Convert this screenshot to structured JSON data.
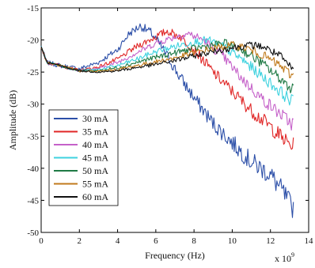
{
  "chart_data": {
    "type": "line",
    "xlabel": "Frequency (Hz)",
    "ylabel": "Amplitude (dB)",
    "x_multiplier_label": "x 10",
    "x_multiplier_exponent": "9",
    "xlim": [
      0,
      14
    ],
    "ylim": [
      -50,
      -15
    ],
    "xticks": [
      "0",
      "2",
      "4",
      "6",
      "8",
      "10",
      "12",
      "14"
    ],
    "yticks": [
      "-15",
      "-20",
      "-25",
      "-30",
      "-35",
      "-40",
      "-45",
      "-50"
    ],
    "grid": false,
    "legend_position": "lower-left",
    "x_max_data": 13.2,
    "series": [
      {
        "name": "30 mA",
        "color": "#2c4fa8",
        "noise": 1.8,
        "points": [
          [
            0,
            -21
          ],
          [
            0.3,
            -23.5
          ],
          [
            1,
            -24
          ],
          [
            2,
            -24.5
          ],
          [
            3,
            -23.5
          ],
          [
            4,
            -21.5
          ],
          [
            4.6,
            -19
          ],
          [
            5.2,
            -17.8
          ],
          [
            5.8,
            -19
          ],
          [
            6.5,
            -22
          ],
          [
            7.2,
            -25.5
          ],
          [
            8,
            -29
          ],
          [
            9,
            -33
          ],
          [
            10,
            -36
          ],
          [
            11,
            -39
          ],
          [
            12,
            -41
          ],
          [
            12.7,
            -44
          ],
          [
            13.1,
            -46
          ]
        ]
      },
      {
        "name": "35 mA",
        "color": "#e02626",
        "noise": 1.3,
        "points": [
          [
            0,
            -21
          ],
          [
            0.3,
            -23.5
          ],
          [
            1,
            -24
          ],
          [
            2,
            -24.8
          ],
          [
            3,
            -24.2
          ],
          [
            4,
            -23
          ],
          [
            5,
            -21
          ],
          [
            6,
            -19.5
          ],
          [
            6.6,
            -18.6
          ],
          [
            7.3,
            -19.5
          ],
          [
            8,
            -21.5
          ],
          [
            9,
            -25
          ],
          [
            10,
            -28
          ],
          [
            11,
            -31
          ],
          [
            12,
            -33.5
          ],
          [
            12.7,
            -35.5
          ],
          [
            13.1,
            -36.5
          ]
        ]
      },
      {
        "name": "40 mA",
        "color": "#c561c9",
        "noise": 1.1,
        "points": [
          [
            0,
            -21
          ],
          [
            0.3,
            -23.5
          ],
          [
            1,
            -24
          ],
          [
            2,
            -24.8
          ],
          [
            3,
            -24.5
          ],
          [
            4,
            -23.5
          ],
          [
            5,
            -22
          ],
          [
            6,
            -20.5
          ],
          [
            7,
            -19.5
          ],
          [
            7.7,
            -19
          ],
          [
            8.5,
            -20
          ],
          [
            9.5,
            -22.5
          ],
          [
            10.5,
            -26
          ],
          [
            11.5,
            -29
          ],
          [
            12.5,
            -31.5
          ],
          [
            13.1,
            -33
          ]
        ]
      },
      {
        "name": "45 mA",
        "color": "#3ed2df",
        "noise": 1.0,
        "points": [
          [
            0,
            -21
          ],
          [
            0.3,
            -23.5
          ],
          [
            1,
            -24
          ],
          [
            2,
            -24.8
          ],
          [
            3,
            -24.6
          ],
          [
            4,
            -24
          ],
          [
            5,
            -23
          ],
          [
            6,
            -21.8
          ],
          [
            7,
            -21
          ],
          [
            8,
            -20.3
          ],
          [
            8.7,
            -20
          ],
          [
            9.5,
            -21
          ],
          [
            10.5,
            -23
          ],
          [
            11.5,
            -25.5
          ],
          [
            12.5,
            -28
          ],
          [
            13.1,
            -29.5
          ]
        ]
      },
      {
        "name": "50 mA",
        "color": "#1f7a45",
        "noise": 0.9,
        "points": [
          [
            0,
            -21
          ],
          [
            0.3,
            -23.5
          ],
          [
            1,
            -24
          ],
          [
            2,
            -24.8
          ],
          [
            3,
            -24.8
          ],
          [
            4,
            -24.3
          ],
          [
            5,
            -23.5
          ],
          [
            6,
            -22.7
          ],
          [
            7,
            -22
          ],
          [
            8,
            -21.3
          ],
          [
            9,
            -20.8
          ],
          [
            9.6,
            -20.5
          ],
          [
            10.5,
            -21.5
          ],
          [
            11.5,
            -23.5
          ],
          [
            12.5,
            -26
          ],
          [
            13.1,
            -27.5
          ]
        ]
      },
      {
        "name": "55 mA",
        "color": "#c07a1c",
        "noise": 0.8,
        "points": [
          [
            0,
            -21
          ],
          [
            0.3,
            -23.5
          ],
          [
            1,
            -24
          ],
          [
            2,
            -24.8
          ],
          [
            3,
            -24.9
          ],
          [
            4,
            -24.6
          ],
          [
            5,
            -24
          ],
          [
            6,
            -23.4
          ],
          [
            7,
            -22.8
          ],
          [
            8,
            -22
          ],
          [
            9,
            -21.3
          ],
          [
            10,
            -20.8
          ],
          [
            10.7,
            -21.2
          ],
          [
            11.5,
            -22.2
          ],
          [
            12.5,
            -24
          ],
          [
            13.1,
            -25.5
          ]
        ]
      },
      {
        "name": "60 mA",
        "color": "#111111",
        "noise": 0.7,
        "points": [
          [
            0,
            -21
          ],
          [
            0.3,
            -23.5
          ],
          [
            1,
            -24
          ],
          [
            2,
            -24.8
          ],
          [
            3,
            -25
          ],
          [
            4,
            -24.8
          ],
          [
            5,
            -24.3
          ],
          [
            6,
            -23.8
          ],
          [
            7,
            -23.2
          ],
          [
            8,
            -22.5
          ],
          [
            9,
            -21.8
          ],
          [
            10,
            -21.2
          ],
          [
            11,
            -20.8
          ],
          [
            11.6,
            -21
          ],
          [
            12.5,
            -22.5
          ],
          [
            13.1,
            -24.5
          ]
        ]
      }
    ]
  }
}
